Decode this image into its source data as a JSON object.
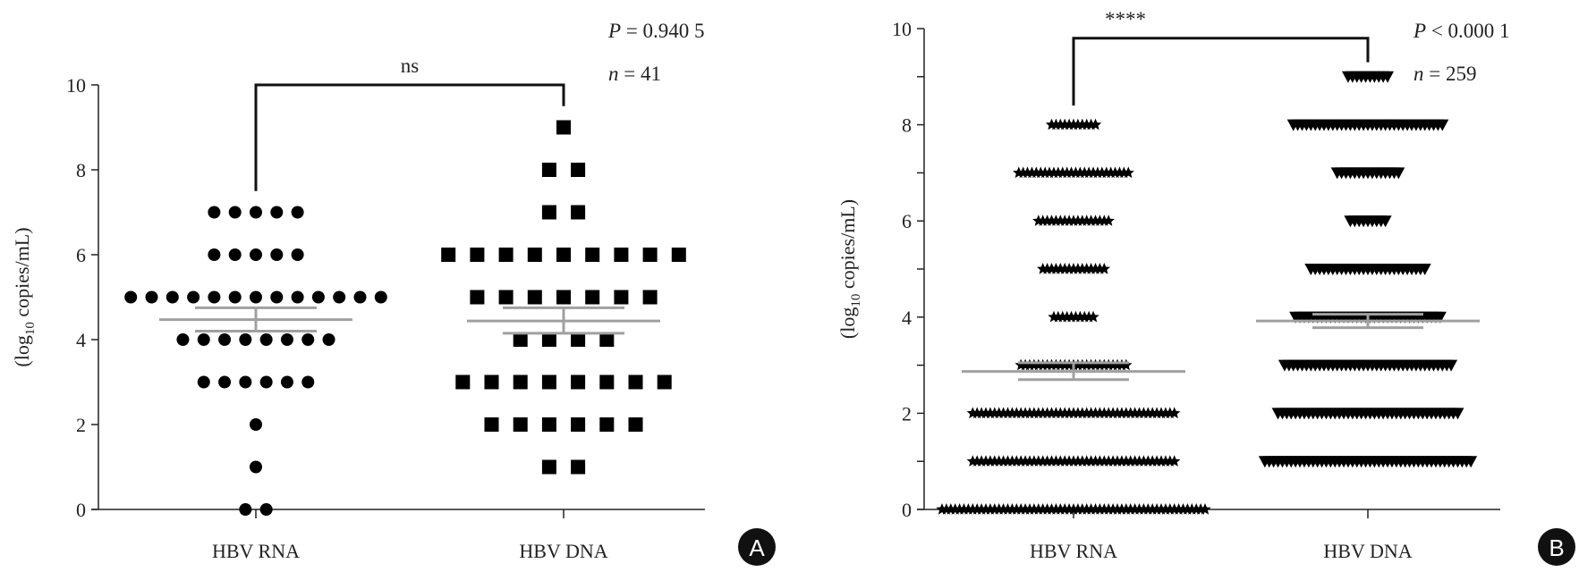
{
  "chart_data": [
    {
      "type": "scatter",
      "panel": "A",
      "ylabel": "(log10 copies/mL)",
      "ylabel_parts": {
        "pre": "(log",
        "sub": "10",
        "post": " copies/mL)"
      },
      "ylim": [
        0,
        10
      ],
      "yticks": [
        "0",
        "2",
        "4",
        "6",
        "8",
        "10"
      ],
      "categories": [
        "HBV RNA",
        "HBV DNA"
      ],
      "marker": [
        "circle",
        "square"
      ],
      "counts_by_level": [
        {
          "name": "HBV RNA",
          "levels": [
            0,
            1,
            2,
            3,
            4,
            5,
            6,
            7
          ],
          "counts": [
            2,
            1,
            1,
            6,
            8,
            13,
            5,
            5
          ]
        },
        {
          "name": "HBV DNA",
          "levels": [
            1,
            2,
            3,
            4,
            5,
            6,
            7,
            8,
            9
          ],
          "counts": [
            2,
            6,
            8,
            4,
            7,
            9,
            2,
            2,
            1
          ]
        }
      ],
      "mean_sem": [
        {
          "name": "HBV RNA",
          "mean": 4.47,
          "low": 4.2,
          "high": 4.75
        },
        {
          "name": "HBV DNA",
          "mean": 4.44,
          "low": 4.15,
          "high": 4.75
        }
      ],
      "significance": "ns",
      "p_text": {
        "label": "P",
        "value": " = 0.940 5"
      },
      "n_text": {
        "label": "n",
        "value": " = 41"
      },
      "bracket": {
        "left_end": 7.5,
        "right_end": 9.5,
        "top": 10
      }
    },
    {
      "type": "scatter",
      "panel": "B",
      "ylabel": "(log10 copies/mL)",
      "ylabel_parts": {
        "pre": "(log",
        "sub": "10",
        "post": " copies/mL)"
      },
      "ylim": [
        0,
        10
      ],
      "yticks": [
        "0",
        "2",
        "4",
        "6",
        "8",
        "10"
      ],
      "categories": [
        "HBV RNA",
        "HBV DNA"
      ],
      "marker": [
        "star",
        "triangle-down"
      ],
      "counts_by_level": [
        {
          "name": "HBV RNA",
          "levels": [
            0,
            1,
            2,
            3,
            4,
            5,
            6,
            7,
            8
          ],
          "counts": [
            61,
            47,
            47,
            25,
            10,
            15,
            17,
            26,
            11
          ]
        },
        {
          "name": "HBV DNA",
          "levels": [
            1,
            2,
            3,
            4,
            5,
            6,
            7,
            8,
            9
          ],
          "counts": [
            48,
            42,
            39,
            34,
            27,
            9,
            15,
            35,
            10
          ]
        }
      ],
      "mean_sem": [
        {
          "name": "HBV RNA",
          "mean": 2.87,
          "low": 2.7,
          "high": 3.05
        },
        {
          "name": "HBV DNA",
          "mean": 3.92,
          "low": 3.78,
          "high": 4.06
        }
      ],
      "significance": "****",
      "p_text": {
        "label": "P",
        "value": " < 0.000 1"
      },
      "n_text": {
        "label": "n",
        "value": " = 259"
      },
      "bracket": {
        "left_end": 8.4,
        "right_end": 9.3,
        "top": 9.8
      }
    }
  ],
  "panel_labels": [
    "A",
    "B"
  ],
  "colors": {
    "points": "#000000",
    "mean_bar": "#a0a0a0",
    "axis": "#222222",
    "badge": "#111111"
  }
}
